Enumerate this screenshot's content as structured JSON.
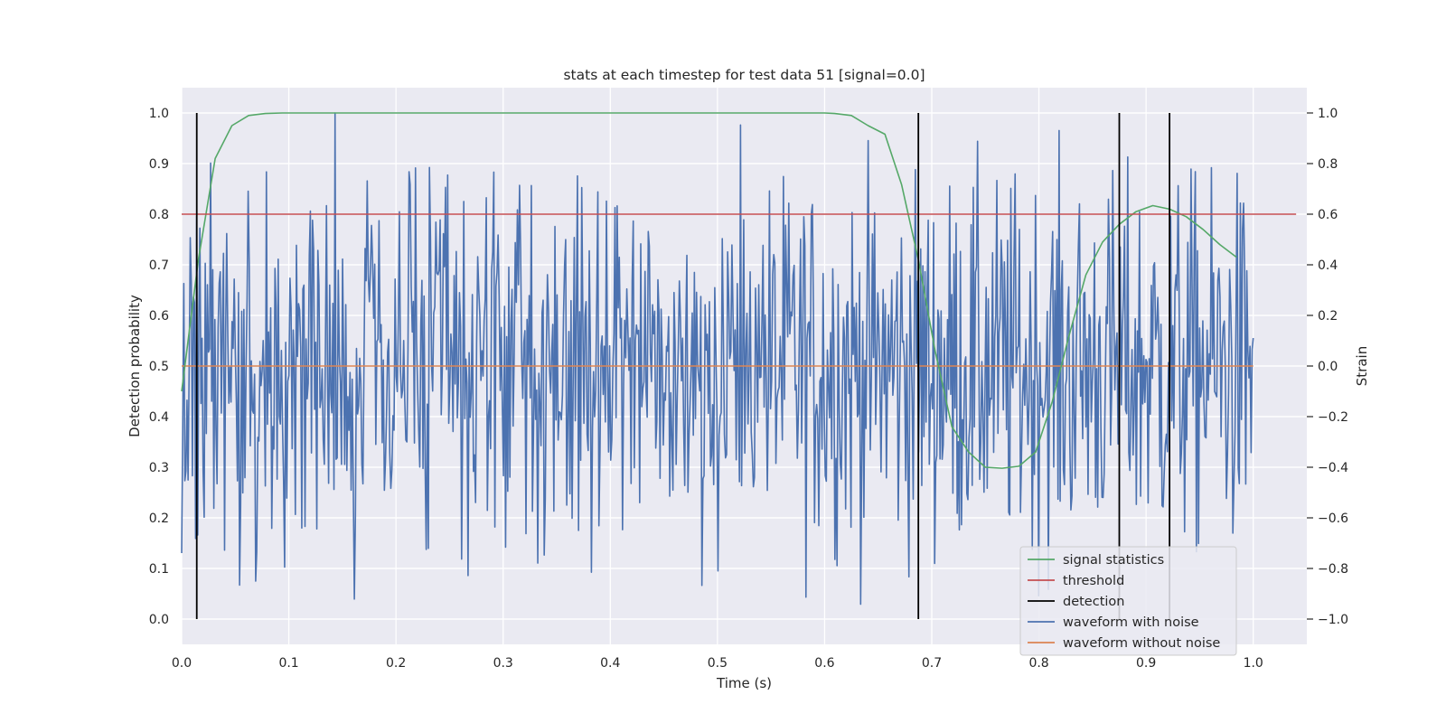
{
  "chart_data": {
    "type": "line",
    "title": "stats at each timestep for test data 51 [signal=0.0]",
    "xlabel": "Time (s)",
    "ylabel_left": "Detection probability",
    "ylabel_right": "Strain",
    "xlim": [
      0.0,
      1.05
    ],
    "ylim_left": [
      -0.05,
      1.05
    ],
    "ylim_right": [
      -1.1,
      1.1
    ],
    "x_ticks": [
      "0.0",
      "0.1",
      "0.2",
      "0.3",
      "0.4",
      "0.5",
      "0.6",
      "0.7",
      "0.8",
      "0.9",
      "1.0"
    ],
    "y_ticks_left": [
      "0.0",
      "0.1",
      "0.2",
      "0.3",
      "0.4",
      "0.5",
      "0.6",
      "0.7",
      "0.8",
      "0.9",
      "1.0"
    ],
    "y_ticks_right": [
      "−1.0",
      "−0.8",
      "−0.6",
      "−0.4",
      "−0.2",
      "0.0",
      "0.2",
      "0.4",
      "0.6",
      "0.8",
      "1.0"
    ],
    "grid": true,
    "legend_position": "lower-right",
    "series": [
      {
        "name": "signal statistics",
        "axis": "left",
        "color": "#55a868",
        "x": [
          0.0,
          0.0156,
          0.0313,
          0.0469,
          0.0625,
          0.0781,
          0.0938,
          0.1094,
          0.125,
          0.2,
          0.3,
          0.4,
          0.5,
          0.55,
          0.6,
          0.6094,
          0.625,
          0.6406,
          0.6563,
          0.6719,
          0.6875,
          0.7031,
          0.7188,
          0.7344,
          0.75,
          0.7656,
          0.7813,
          0.7969,
          0.8125,
          0.8281,
          0.8438,
          0.8594,
          0.875,
          0.8906,
          0.9063,
          0.9219,
          0.9375,
          0.9531,
          0.9688,
          0.9844
        ],
        "values": [
          0.45,
          0.71,
          0.91,
          0.975,
          0.995,
          0.999,
          1.0,
          1.0,
          1.0,
          1.0,
          1.0,
          1.0,
          1.0,
          1.0,
          1.0,
          0.999,
          0.995,
          0.975,
          0.958,
          0.858,
          0.71,
          0.53,
          0.38,
          0.33,
          0.3,
          0.298,
          0.302,
          0.33,
          0.43,
          0.56,
          0.68,
          0.745,
          0.78,
          0.805,
          0.817,
          0.81,
          0.795,
          0.77,
          0.74,
          0.715
        ]
      },
      {
        "name": "threshold",
        "axis": "left",
        "color": "#c44e52",
        "x": [
          0.0,
          1.04
        ],
        "values": [
          0.8,
          0.8
        ]
      },
      {
        "name": "detection",
        "axis": "left",
        "color": "#000000",
        "type": "vlines",
        "x": [
          0.0141,
          0.6875,
          0.875,
          0.9219
        ],
        "ymin": 0.0,
        "ymax": 1.0
      },
      {
        "name": "waveform with noise",
        "axis": "right",
        "color": "#4c72b0",
        "x_range": [
          0.0,
          1.0
        ],
        "samples": 1000,
        "min": -1.0,
        "max": 1.0
      },
      {
        "name": "waveform without noise",
        "axis": "right",
        "color": "#dd8452",
        "x": [
          0.0,
          1.0
        ],
        "values": [
          0.0,
          0.0
        ]
      }
    ]
  },
  "legend": {
    "items": [
      {
        "label": "signal statistics",
        "color": "#55a868"
      },
      {
        "label": "threshold",
        "color": "#c44e52"
      },
      {
        "label": "detection",
        "color": "#000000"
      },
      {
        "label": "waveform with noise",
        "color": "#4c72b0"
      },
      {
        "label": "waveform without noise",
        "color": "#dd8452"
      }
    ]
  }
}
